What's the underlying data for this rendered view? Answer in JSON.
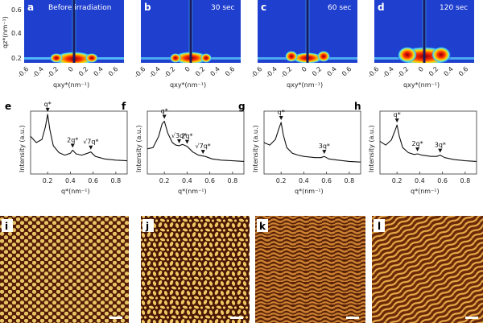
{
  "figure": {
    "saxs_panels": [
      {
        "letter": "a",
        "title": "Before irradiation"
      },
      {
        "letter": "b",
        "title": "30 sec"
      },
      {
        "letter": "c",
        "title": "60 sec"
      },
      {
        "letter": "d",
        "title": "120 sec"
      }
    ],
    "saxs_y_ticks": [
      "0.6",
      "0.4",
      "0.2"
    ],
    "saxs_x_ticks": [
      "-0.6",
      "-0.4",
      "-0.2",
      "0",
      "0.2",
      "0.4",
      "0.6"
    ],
    "saxs_ylabel": "qz*(nm⁻¹)",
    "saxs_xlabel": "qxy*(nm⁻¹)",
    "profile_panels": [
      {
        "letter": "e"
      },
      {
        "letter": "f"
      },
      {
        "letter": "g"
      },
      {
        "letter": "h"
      }
    ],
    "afm_panels": [
      {
        "letter": "i"
      },
      {
        "letter": "j"
      },
      {
        "letter": "k"
      },
      {
        "letter": "l"
      }
    ],
    "colors": {
      "saxs_bg": "#1f3fcf",
      "afm_dark": "#5a1e08",
      "afm_light": "#f2cf6a",
      "afm_mid": "#b8621e"
    }
  },
  "chart_data": [
    {
      "panel": "e",
      "type": "line",
      "xlabel": "q*(nm⁻¹)",
      "ylabel": "Intensity (a.u.)",
      "xlim": [
        0.05,
        0.9
      ],
      "ylim": [
        0,
        1
      ],
      "xticks": [
        "0.2",
        "0.4",
        "0.6",
        "0.8"
      ],
      "x": [
        0.05,
        0.1,
        0.15,
        0.18,
        0.2,
        0.22,
        0.25,
        0.3,
        0.35,
        0.4,
        0.42,
        0.45,
        0.5,
        0.55,
        0.58,
        0.62,
        0.7,
        0.8,
        0.9
      ],
      "y": [
        0.6,
        0.5,
        0.55,
        0.75,
        0.95,
        0.7,
        0.45,
        0.34,
        0.3,
        0.33,
        0.38,
        0.32,
        0.3,
        0.33,
        0.35,
        0.28,
        0.24,
        0.22,
        0.21
      ],
      "annotations": [
        {
          "text": "q*",
          "x": 0.2,
          "y": 0.95
        },
        {
          "text": "2q*",
          "x": 0.42,
          "y": 0.38
        },
        {
          "text": "√7q*",
          "x": 0.58,
          "y": 0.35
        }
      ]
    },
    {
      "panel": "f",
      "type": "line",
      "xlabel": "q*(nm⁻¹)",
      "ylabel": "Intensity (a.u.)",
      "xlim": [
        0.05,
        0.9
      ],
      "ylim": [
        0,
        1
      ],
      "xticks": [
        "0.2",
        "0.4",
        "0.6",
        "0.8"
      ],
      "x": [
        0.05,
        0.1,
        0.15,
        0.18,
        0.2,
        0.23,
        0.27,
        0.3,
        0.33,
        0.36,
        0.4,
        0.45,
        0.5,
        0.56,
        0.62,
        0.7,
        0.8,
        0.9
      ],
      "y": [
        0.4,
        0.42,
        0.6,
        0.8,
        0.84,
        0.65,
        0.5,
        0.46,
        0.45,
        0.47,
        0.44,
        0.35,
        0.3,
        0.28,
        0.24,
        0.22,
        0.21,
        0.2
      ],
      "annotations": [
        {
          "text": "q*",
          "x": 0.2,
          "y": 0.84
        },
        {
          "text": "√3q*",
          "x": 0.33,
          "y": 0.45
        },
        {
          "text": "2q*",
          "x": 0.4,
          "y": 0.44
        },
        {
          "text": "√7q*",
          "x": 0.54,
          "y": 0.28
        }
      ]
    },
    {
      "panel": "g",
      "type": "line",
      "xlabel": "q*(nm⁻¹)",
      "ylabel": "Intensity (a.u.)",
      "xlim": [
        0.05,
        0.9
      ],
      "ylim": [
        0,
        1
      ],
      "xticks": [
        "0.2",
        "0.4",
        "0.6",
        "0.8"
      ],
      "x": [
        0.05,
        0.1,
        0.15,
        0.18,
        0.2,
        0.22,
        0.25,
        0.3,
        0.35,
        0.4,
        0.45,
        0.5,
        0.55,
        0.58,
        0.62,
        0.7,
        0.8,
        0.9
      ],
      "y": [
        0.5,
        0.46,
        0.55,
        0.72,
        0.82,
        0.62,
        0.42,
        0.33,
        0.3,
        0.28,
        0.27,
        0.26,
        0.26,
        0.28,
        0.24,
        0.22,
        0.2,
        0.19
      ],
      "annotations": [
        {
          "text": "q*",
          "x": 0.2,
          "y": 0.82
        },
        {
          "text": "3q*",
          "x": 0.58,
          "y": 0.28
        }
      ]
    },
    {
      "panel": "h",
      "type": "line",
      "xlabel": "q*(nm⁻¹)",
      "ylabel": "Intensity (a.u.)",
      "xlim": [
        0.05,
        0.9
      ],
      "ylim": [
        0,
        1
      ],
      "xticks": [
        "0.2",
        "0.4",
        "0.6",
        "0.8"
      ],
      "x": [
        0.05,
        0.1,
        0.15,
        0.18,
        0.2,
        0.22,
        0.25,
        0.3,
        0.35,
        0.38,
        0.42,
        0.5,
        0.55,
        0.58,
        0.62,
        0.7,
        0.8,
        0.9
      ],
      "y": [
        0.52,
        0.46,
        0.54,
        0.68,
        0.78,
        0.6,
        0.42,
        0.34,
        0.31,
        0.32,
        0.3,
        0.28,
        0.28,
        0.3,
        0.26,
        0.23,
        0.21,
        0.2
      ],
      "annotations": [
        {
          "text": "q*",
          "x": 0.2,
          "y": 0.78
        },
        {
          "text": "2q*",
          "x": 0.38,
          "y": 0.32
        },
        {
          "text": "3q*",
          "x": 0.58,
          "y": 0.3
        }
      ]
    }
  ]
}
